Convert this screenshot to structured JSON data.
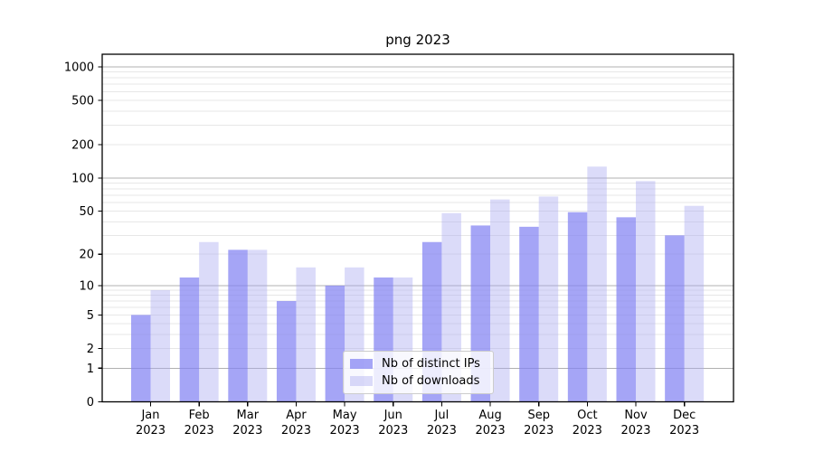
{
  "title": "png 2023",
  "chart_data": {
    "type": "bar",
    "title": "png 2023",
    "categories": [
      "Jan 2023",
      "Feb 2023",
      "Mar 2023",
      "Apr 2023",
      "May 2023",
      "Jun 2023",
      "Jul 2023",
      "Aug 2023",
      "Sep 2023",
      "Oct 2023",
      "Nov 2023",
      "Dec 2023"
    ],
    "series": [
      {
        "name": "Nb of distinct IPs",
        "color": "rgba(130,130,242,0.72)",
        "values": [
          5,
          12,
          22,
          7,
          10,
          12,
          26,
          37,
          36,
          49,
          44,
          30
        ]
      },
      {
        "name": "Nb of downloads",
        "color": "rgba(170,170,240,0.42)",
        "values": [
          9,
          26,
          22,
          15,
          15,
          12,
          48,
          64,
          68,
          127,
          94,
          56
        ]
      }
    ],
    "yscale": "log10(value+1)",
    "yticks": [
      0,
      1,
      2,
      5,
      10,
      20,
      50,
      100,
      200,
      500,
      1000
    ],
    "ylim": [
      0,
      1100
    ],
    "xlabel": "",
    "ylabel": "",
    "grid": true,
    "legend_position": "lower center"
  },
  "axis_style": {
    "major_grid_values": [
      1,
      10,
      100,
      1000
    ],
    "minor_grid_values": [
      2,
      3,
      4,
      5,
      6,
      7,
      8,
      9,
      20,
      30,
      40,
      50,
      60,
      70,
      80,
      90,
      200,
      300,
      400,
      500,
      600,
      700,
      800,
      900
    ],
    "major_grid_color": "#b0b0b0",
    "minor_grid_color": "#e7e7e7",
    "spine_color": "#000000",
    "tick_label_color": "#000000"
  }
}
